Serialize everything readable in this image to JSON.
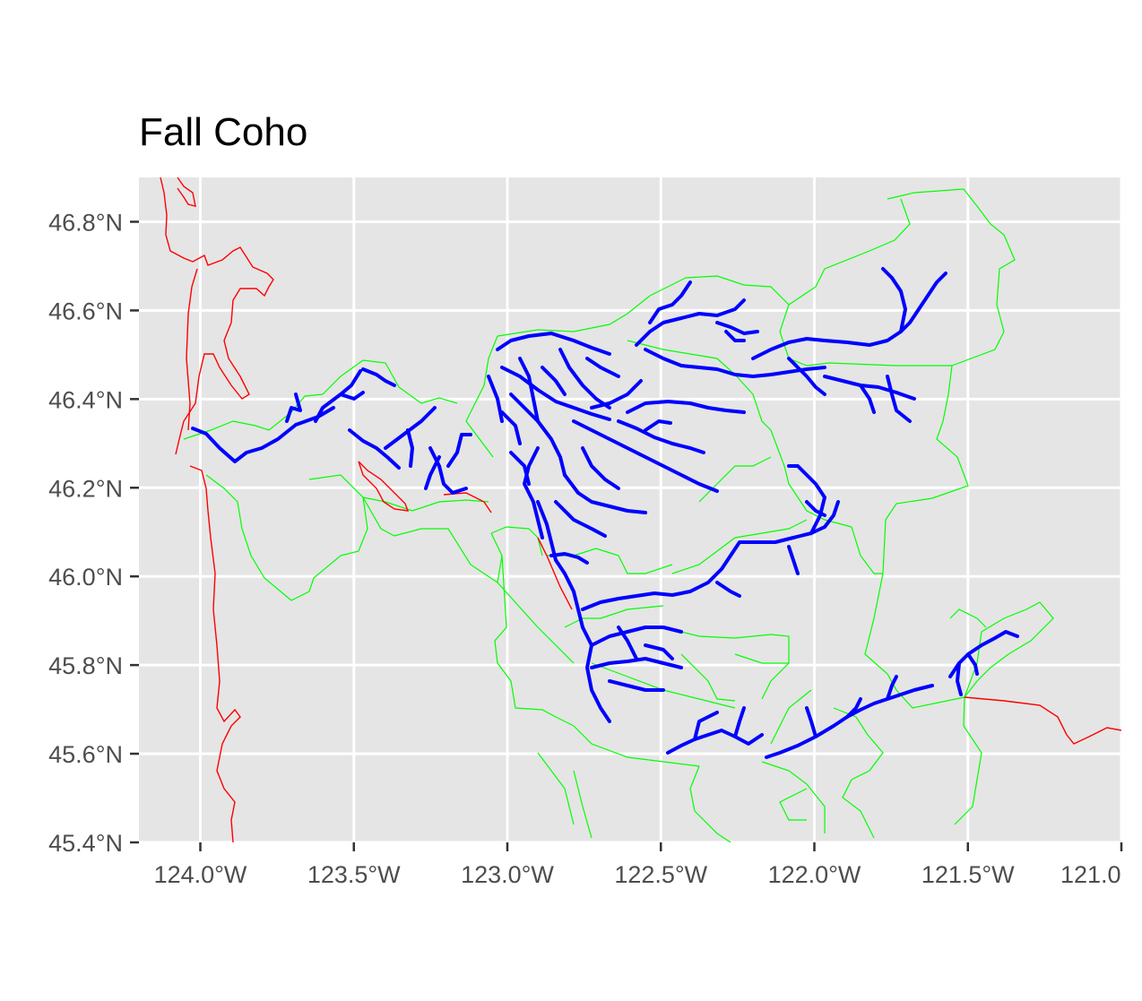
{
  "chart_data": {
    "type": "map",
    "title": "Fall Coho",
    "x_axis": {
      "label": "",
      "ticks": [
        -124.0,
        -123.5,
        -123.0,
        -122.5,
        -122.0,
        -121.5,
        -121.0
      ],
      "tick_labels": [
        "124.0°W",
        "123.5°W",
        "123.0°W",
        "122.5°W",
        "122.0°W",
        "121.5°W",
        "121.0"
      ],
      "range": [
        -124.2,
        -121.0
      ]
    },
    "y_axis": {
      "label": "",
      "ticks": [
        45.4,
        45.6,
        45.8,
        46.0,
        46.2,
        46.4,
        46.6,
        46.8
      ],
      "tick_labels": [
        "45.4°N",
        "45.6°N",
        "45.8°N",
        "46.0°N",
        "46.2°N",
        "46.4°N",
        "46.6°N",
        "46.8°N"
      ],
      "range": [
        45.4,
        46.9
      ]
    },
    "grid": true,
    "layers": [
      {
        "name": "coastline / state boundary",
        "color": "#ff0000"
      },
      {
        "name": "watershed boundaries",
        "color": "#00ff00"
      },
      {
        "name": "fall coho stream reaches",
        "color": "#0000ff"
      }
    ],
    "colors": {
      "panel_background": "#e5e5e5",
      "gridline": "#ffffff",
      "tick_text": "#4d4d4d"
    }
  }
}
